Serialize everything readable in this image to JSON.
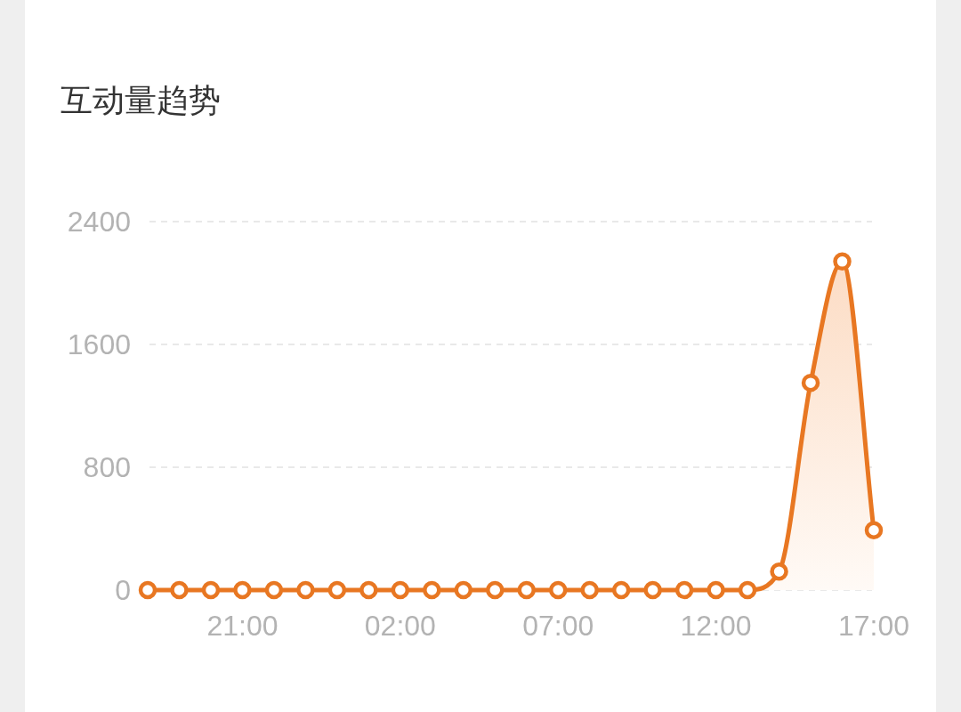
{
  "chart_data": {
    "type": "area",
    "title": "互动量趋势",
    "categories": [
      null,
      null,
      null,
      "21:00",
      null,
      null,
      null,
      null,
      "02:00",
      null,
      null,
      null,
      null,
      "07:00",
      null,
      null,
      null,
      null,
      "12:00",
      null,
      null,
      null,
      null,
      "17:00"
    ],
    "values": [
      0,
      0,
      0,
      0,
      0,
      0,
      0,
      0,
      0,
      0,
      0,
      0,
      0,
      0,
      0,
      0,
      0,
      0,
      0,
      0,
      120,
      1350,
      2140,
      390
    ],
    "color": "#e87722",
    "ylim": [
      0,
      2400
    ],
    "yticks": [
      0,
      800,
      1600,
      2400
    ],
    "grid": "y",
    "marker": "circle"
  }
}
